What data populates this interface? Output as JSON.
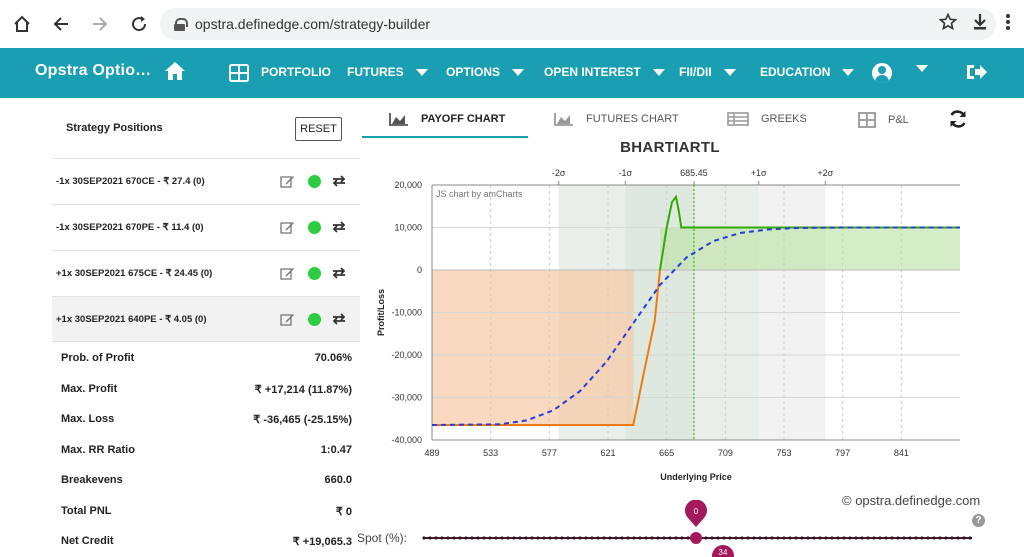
{
  "browser": {
    "url": "opstra.definedge.com/strategy-builder",
    "icons": [
      "home-icon",
      "back-icon",
      "forward-icon",
      "reload-icon",
      "lock-icon",
      "star-icon",
      "download-icon",
      "menu-icon"
    ]
  },
  "header": {
    "brand": "Opstra Optio…",
    "nav": {
      "portfolio": "PORTFOLIO",
      "futures": "FUTURES",
      "options": "OPTIONS",
      "open_interest": "OPEN INTEREST",
      "fii_dii": "FII/DII",
      "education": "EDUCATION"
    },
    "color": "#1a9fb2"
  },
  "strategy": {
    "title": "Strategy Positions",
    "reset_label": "RESET",
    "positions": [
      {
        "text": "-1x  30SEP2021  670CE  - ₹ 27.4   (0)"
      },
      {
        "text": "-1x  30SEP2021  670PE  - ₹ 11.4   (0)"
      },
      {
        "text": "+1x  30SEP2021  675CE  - ₹ 24.45   (0)"
      },
      {
        "text": "+1x  30SEP2021  640PE  - ₹ 4.05   (0)"
      }
    ],
    "stats": [
      {
        "label": "Prob. of Profit",
        "value": "70.06%"
      },
      {
        "label": "Max. Profit",
        "value": "₹ +17,214 (11.87%)"
      },
      {
        "label": "Max. Loss",
        "value": "₹ -36,465 (-25.15%)"
      },
      {
        "label": "Max. RR Ratio",
        "value": "1:0.47"
      },
      {
        "label": "Breakevens",
        "value": "660.0"
      },
      {
        "label": "Total PNL",
        "value": "₹ 0"
      },
      {
        "label": "Net Credit",
        "value": "₹ +19,065.3"
      }
    ]
  },
  "tabs": {
    "payoff": "PAYOFF CHART",
    "futures": "FUTURES CHART",
    "greeks": "GREEKS",
    "pnl": "P&L",
    "active": "payoff"
  },
  "chart_data": {
    "type": "line",
    "title": "BHARTIARTL",
    "credit": "JS chart by amCharts",
    "xlabel": "Underlying Price",
    "ylabel": "Profit/Loss",
    "xlim": [
      489,
      885
    ],
    "ylim": [
      -40000,
      20000
    ],
    "x_ticks": [
      "489",
      "533",
      "577",
      "621",
      "665",
      "709",
      "753",
      "797",
      "841"
    ],
    "y_ticks": [
      "20,000",
      "10,000",
      "0",
      "-10,000",
      "-20,000",
      "-30,000",
      "-40,000"
    ],
    "sigma_ticks": [
      {
        "label": "-2σ",
        "x": 584
      },
      {
        "label": "-1σ",
        "x": 634
      },
      {
        "label": "685.45",
        "x": 685.45
      },
      {
        "label": "+1σ",
        "x": 734
      },
      {
        "label": "+2σ",
        "x": 784
      }
    ],
    "sigma_bands": [
      {
        "from": 584,
        "to": 634,
        "color": "#eaeeea"
      },
      {
        "from": 634,
        "to": 685.45,
        "color": "#dfe8df"
      },
      {
        "from": 685.45,
        "to": 734,
        "color": "#eaeeea"
      },
      {
        "from": 734,
        "to": 784,
        "color": "#f2f2f2"
      }
    ],
    "spot": 685.45,
    "series": [
      {
        "color": "#2eaa00",
        "x": [
          489,
          640,
          648,
          656,
          660,
          665,
          669,
          672,
          674,
          676,
          678,
          885
        ],
        "values": [
          -36465,
          -36465,
          -24000,
          -12000,
          0,
          10000,
          16000,
          17214,
          14000,
          10000,
          10000,
          10000
        ]
      },
      {
        "color": "#2b3ad8",
        "x": [
          489,
          540,
          560,
          580,
          600,
          620,
          640,
          660,
          680,
          700,
          720,
          740,
          760,
          780,
          800,
          885
        ],
        "values": [
          -36465,
          -36300,
          -35400,
          -33000,
          -28500,
          -21500,
          -12500,
          -3500,
          3000,
          6800,
          8700,
          9500,
          9850,
          9950,
          10000,
          10000
        ]
      }
    ]
  },
  "footer": {
    "watermark": "© opstra.definedge.com",
    "spot_label": "Spot (%):",
    "slider_value": "0",
    "slider_tick": "34",
    "slider_color": "#a3195b"
  }
}
